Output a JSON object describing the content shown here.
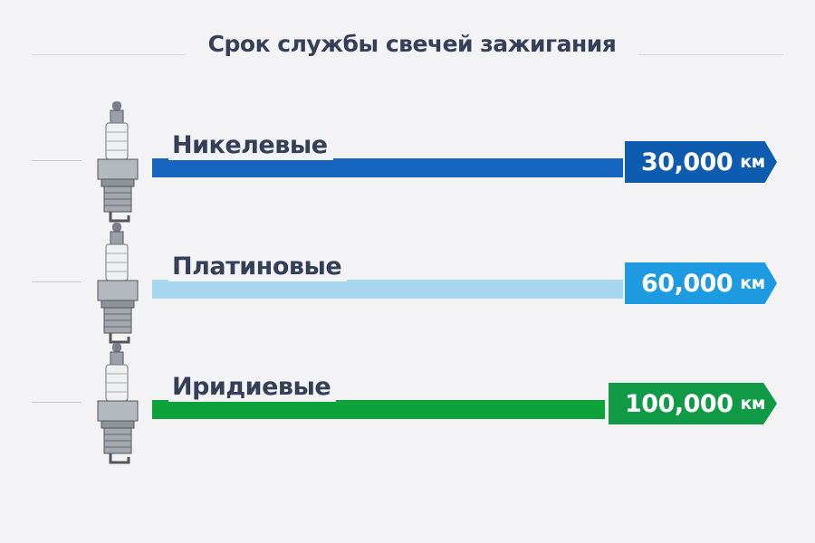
{
  "chart_data": {
    "type": "bar",
    "orientation": "horizontal",
    "title": "Срок службы свечей зажигания",
    "categories": [
      "Никелевые",
      "Платиновые",
      "Иридиевые"
    ],
    "values": [
      30000,
      60000,
      100000
    ],
    "value_labels": [
      "30,000",
      "60,000",
      "100,000"
    ],
    "unit": "км",
    "colors": [
      "#1565c0",
      "#a8d8f0",
      "#0ea23a"
    ],
    "tag_colors": [
      "#0d5cb0",
      "#1e9ae0",
      "#109a45"
    ],
    "legend": "none",
    "grid": false
  }
}
